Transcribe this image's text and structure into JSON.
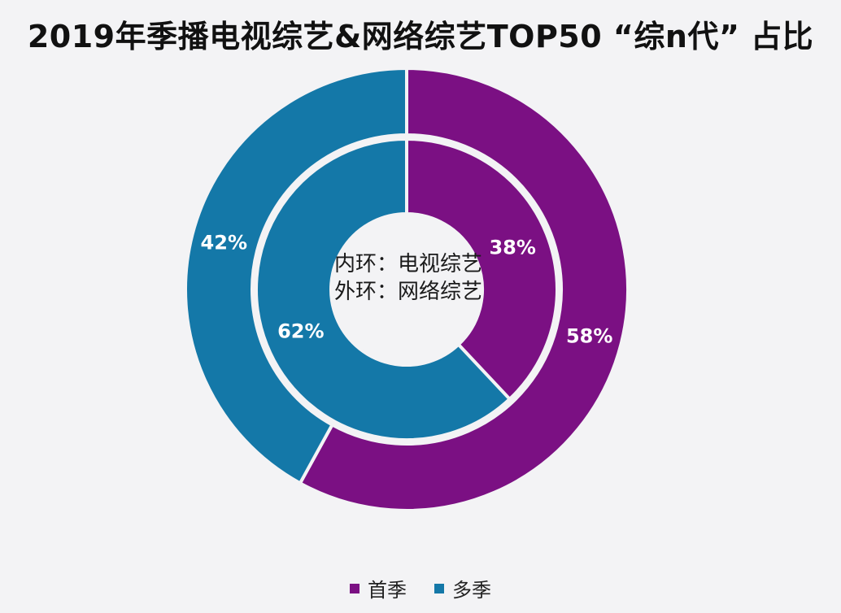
{
  "title": "2019年季播电视综艺&网络综艺TOP50 “综n代” 占比",
  "center_note": {
    "line1": "内环：电视综艺",
    "line2": "外环：网络综艺"
  },
  "colors": {
    "first_season": "#7b1083",
    "multi_season": "#1478a8",
    "separator": "#f3f3f5",
    "label": "#ffffff"
  },
  "chart_data": {
    "type": "pie",
    "subtype": "double-donut",
    "categories": [
      "首季",
      "多季"
    ],
    "series": [
      {
        "ring": "inner",
        "name": "电视综艺",
        "values": [
          38,
          62
        ],
        "labels": [
          "38%",
          "62%"
        ]
      },
      {
        "ring": "outer",
        "name": "网络综艺",
        "values": [
          58,
          42
        ],
        "labels": [
          "58%",
          "42%"
        ]
      }
    ],
    "legend": {
      "position": "bottom",
      "entries": [
        "首季",
        "多季"
      ]
    }
  }
}
